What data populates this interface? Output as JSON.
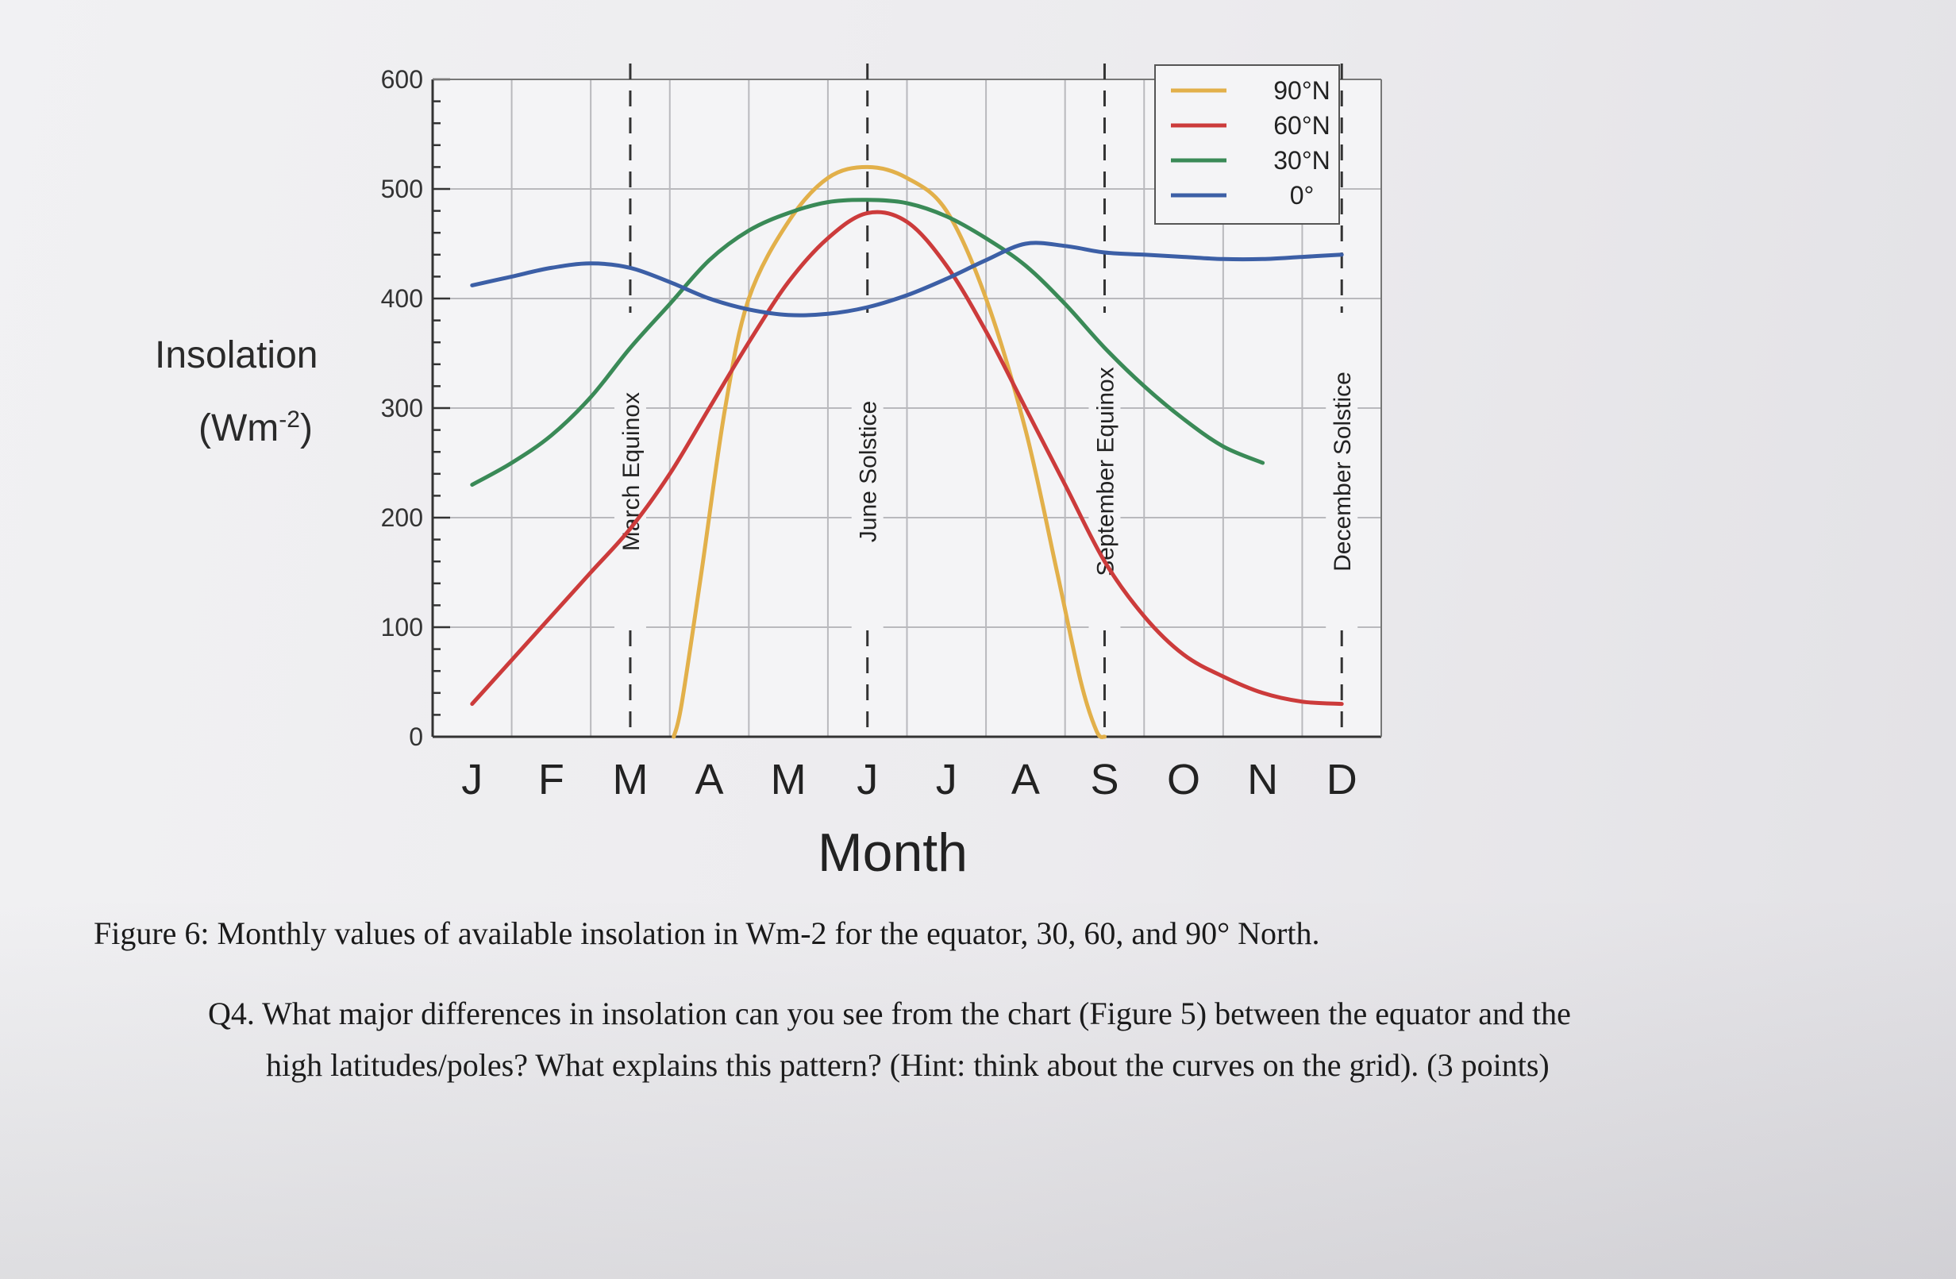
{
  "chart_data": {
    "type": "line",
    "title": "",
    "ylabel": "Insolation",
    "ylabel_unit": "(Wm-2)",
    "xlabel": "Month",
    "ylim": [
      0,
      600
    ],
    "yticks": [
      "0",
      "100",
      "200",
      "300",
      "400",
      "500",
      "600"
    ],
    "categories": [
      "J",
      "F",
      "M",
      "A",
      "M",
      "J",
      "J",
      "A",
      "S",
      "O",
      "N",
      "D"
    ],
    "grid": true,
    "legend_position": "top-right",
    "series": [
      {
        "name": "90°N",
        "color": "#e2b04a",
        "points": [
          [
            2.55,
            0
          ],
          [
            2.65,
            30
          ],
          [
            2.9,
            150
          ],
          [
            3.2,
            300
          ],
          [
            3.5,
            400
          ],
          [
            4.0,
            470
          ],
          [
            4.5,
            510
          ],
          [
            5.0,
            520
          ],
          [
            5.5,
            510
          ],
          [
            6.0,
            480
          ],
          [
            6.5,
            400
          ],
          [
            7.0,
            280
          ],
          [
            7.4,
            150
          ],
          [
            7.7,
            50
          ],
          [
            7.9,
            5
          ],
          [
            8.0,
            0
          ]
        ]
      },
      {
        "name": "60°N",
        "color": "#cc3b3b",
        "points": [
          [
            0,
            30
          ],
          [
            0.5,
            70
          ],
          [
            1,
            110
          ],
          [
            1.5,
            150
          ],
          [
            2.0,
            190
          ],
          [
            2.5,
            240
          ],
          [
            3,
            300
          ],
          [
            3.5,
            360
          ],
          [
            4,
            415
          ],
          [
            4.5,
            455
          ],
          [
            5,
            478
          ],
          [
            5.5,
            470
          ],
          [
            6,
            430
          ],
          [
            6.5,
            370
          ],
          [
            7,
            300
          ],
          [
            7.5,
            230
          ],
          [
            8,
            160
          ],
          [
            8.5,
            110
          ],
          [
            9,
            75
          ],
          [
            9.5,
            55
          ],
          [
            10,
            40
          ],
          [
            10.5,
            32
          ],
          [
            11,
            30
          ]
        ]
      },
      {
        "name": "30°N",
        "color": "#3a8a57",
        "points": [
          [
            0,
            230
          ],
          [
            0.5,
            250
          ],
          [
            1,
            275
          ],
          [
            1.5,
            310
          ],
          [
            2,
            355
          ],
          [
            2.5,
            395
          ],
          [
            3,
            435
          ],
          [
            3.5,
            462
          ],
          [
            4,
            478
          ],
          [
            4.5,
            488
          ],
          [
            5,
            490
          ],
          [
            5.5,
            487
          ],
          [
            6,
            475
          ],
          [
            6.5,
            455
          ],
          [
            7,
            430
          ],
          [
            7.5,
            395
          ],
          [
            8,
            355
          ],
          [
            8.5,
            320
          ],
          [
            9,
            290
          ],
          [
            9.5,
            265
          ],
          [
            10,
            250
          ]
        ]
      },
      {
        "name": "0°",
        "color": "#3c5fa6",
        "points": [
          [
            0,
            412
          ],
          [
            0.5,
            420
          ],
          [
            1,
            428
          ],
          [
            1.5,
            432
          ],
          [
            2,
            428
          ],
          [
            2.5,
            415
          ],
          [
            3,
            400
          ],
          [
            3.5,
            390
          ],
          [
            4,
            385
          ],
          [
            4.5,
            386
          ],
          [
            5,
            392
          ],
          [
            5.5,
            403
          ],
          [
            6,
            418
          ],
          [
            6.5,
            435
          ],
          [
            7,
            450
          ],
          [
            7.5,
            448
          ],
          [
            8,
            442
          ],
          [
            8.5,
            440
          ],
          [
            9,
            438
          ],
          [
            9.5,
            436
          ],
          [
            10,
            436
          ],
          [
            10.5,
            438
          ],
          [
            11,
            440
          ]
        ]
      }
    ],
    "events": [
      {
        "label": "March Equinox",
        "x": 2.0
      },
      {
        "label": "June Solstice",
        "x": 5.0
      },
      {
        "label": "September Equinox",
        "x": 8.0
      },
      {
        "label": "December Solstice",
        "x": 11.0
      }
    ]
  },
  "caption": "Figure 6: Monthly values of available insolation in Wm-2 for the equator, 30, 60, and 90° North.",
  "question": {
    "line1": "Q4. What major differences in insolation can you see from the chart (Figure 5) between the equator and the",
    "line2": "high latitudes/poles? What explains this pattern? (Hint: think about the curves on the grid). (3 points)"
  }
}
